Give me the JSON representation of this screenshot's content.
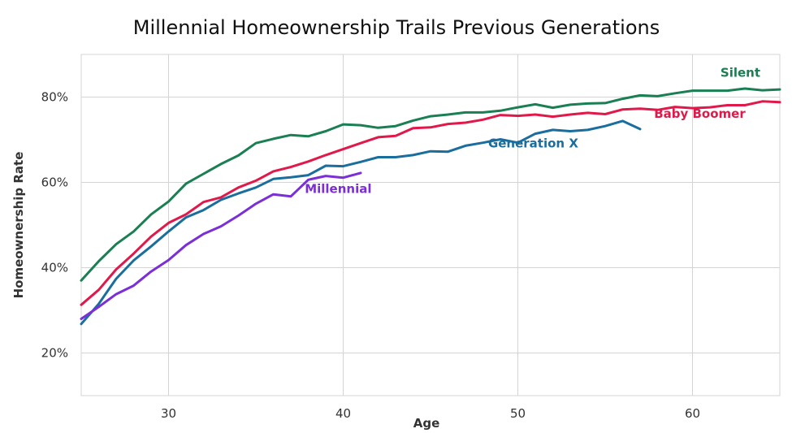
{
  "chart_data": {
    "type": "line",
    "title": "Millennial Homeownership Trails Previous Generations",
    "xlabel": "Age",
    "ylabel": "Homeownership Rate",
    "xlim": [
      25,
      65
    ],
    "ylim": [
      10,
      90
    ],
    "xticks": [
      30,
      40,
      50,
      60
    ],
    "yticks": [
      20,
      40,
      60,
      80
    ],
    "ytick_labels": [
      "20%",
      "40%",
      "60%",
      "80%"
    ],
    "grid": true,
    "legend": "inline labels",
    "series": [
      {
        "name": "Silent",
        "color": "#1a7f52",
        "x": [
          25,
          26,
          27,
          28,
          29,
          30,
          31,
          32,
          33,
          34,
          35,
          36,
          37,
          38,
          39,
          40,
          41,
          42,
          43,
          44,
          45,
          46,
          47,
          48,
          49,
          50,
          51,
          52,
          53,
          54,
          55,
          56,
          57,
          58,
          59,
          60,
          61,
          62,
          63,
          64,
          65
        ],
        "values": [
          37,
          41.5,
          45.5,
          48.5,
          52.5,
          55.5,
          59.7,
          62,
          64.3,
          66.3,
          69.2,
          70.2,
          71.1,
          70.8,
          72,
          73.6,
          73.4,
          72.8,
          73.2,
          74.5,
          75.5,
          75.9,
          76.4,
          76.4,
          76.8,
          77.6,
          78.3,
          77.5,
          78.2,
          78.5,
          78.6,
          79.6,
          80.4,
          80.2,
          80.9,
          81.5,
          81.5,
          81.5,
          82,
          81.6,
          81.8
        ]
      },
      {
        "name": "Baby Boomer",
        "color": "#e0194a",
        "x": [
          25,
          26,
          27,
          28,
          29,
          30,
          31,
          32,
          33,
          34,
          35,
          36,
          37,
          38,
          39,
          40,
          41,
          42,
          43,
          44,
          45,
          46,
          47,
          48,
          49,
          50,
          51,
          52,
          53,
          54,
          55,
          56,
          57,
          58,
          59,
          60,
          61,
          62,
          63,
          64,
          65
        ],
        "values": [
          31.3,
          34.8,
          39.6,
          43.3,
          47.3,
          50.5,
          52.5,
          55.4,
          56.5,
          58.8,
          60.4,
          62.6,
          63.6,
          64.9,
          66.4,
          67.8,
          69.2,
          70.6,
          70.9,
          72.7,
          72.9,
          73.7,
          74,
          74.7,
          75.8,
          75.6,
          75.9,
          75.4,
          75.9,
          76.3,
          76,
          77.1,
          77.3,
          77,
          77.7,
          77.4,
          77.6,
          78.1,
          78.1,
          79,
          78.8
        ]
      },
      {
        "name": "Generation X",
        "color": "#1a6e9e",
        "x": [
          25,
          26,
          27,
          28,
          29,
          30,
          31,
          32,
          33,
          34,
          35,
          36,
          37,
          38,
          39,
          40,
          41,
          42,
          43,
          44,
          45,
          46,
          47,
          48,
          49,
          50,
          51,
          52,
          53,
          54,
          55,
          56,
          57
        ],
        "values": [
          26.8,
          31.5,
          37.4,
          41.7,
          45,
          48.5,
          51.8,
          53.5,
          55.9,
          57.4,
          58.8,
          60.8,
          61.2,
          61.7,
          63.9,
          63.8,
          64.8,
          65.9,
          65.9,
          66.4,
          67.3,
          67.2,
          68.6,
          69.3,
          70.1,
          69.3,
          71.4,
          72.3,
          72,
          72.3,
          73.2,
          74.4,
          72.5
        ]
      },
      {
        "name": "Millennial",
        "color": "#7b2fd6",
        "x": [
          25,
          26,
          27,
          28,
          29,
          30,
          31,
          32,
          33,
          34,
          35,
          36,
          37,
          38,
          39,
          40,
          41
        ],
        "values": [
          28,
          30.8,
          33.8,
          35.8,
          39.1,
          41.8,
          45.3,
          47.9,
          49.7,
          52.2,
          55,
          57.2,
          56.7,
          60.6,
          61.5,
          61.1,
          62.2
        ]
      }
    ],
    "labels": [
      {
        "series": "Silent",
        "text": "Silent",
        "x": 61.6,
        "y": 84.8
      },
      {
        "series": "Baby Boomer",
        "text": "Baby Boomer",
        "x": 57.8,
        "y": 75.1
      },
      {
        "series": "Generation X",
        "text": "Generation X",
        "x": 48.3,
        "y": 68.2
      },
      {
        "series": "Millennial",
        "text": "Millennial",
        "x": 37.8,
        "y": 57.5
      }
    ]
  }
}
